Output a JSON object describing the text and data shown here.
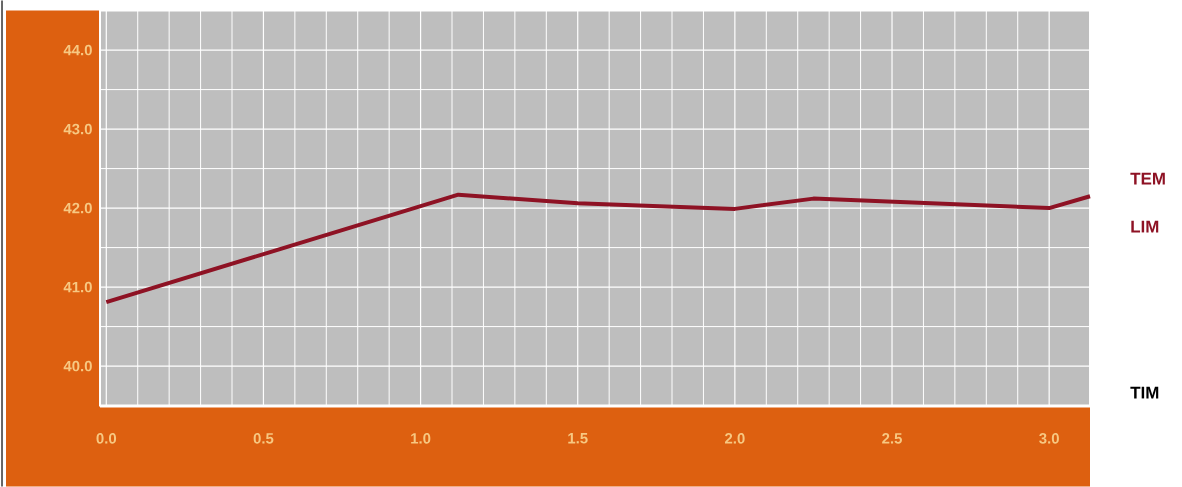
{
  "chart_data": {
    "type": "line",
    "x": [
      0.0,
      1.12,
      1.5,
      2.0,
      2.25,
      3.0,
      3.13
    ],
    "series": [
      {
        "color": "#8e1224",
        "values": [
          40.81,
          42.17,
          42.06,
          41.99,
          42.12,
          42.0,
          42.15
        ]
      }
    ],
    "xlim": [
      -0.02,
      3.13
    ],
    "ylim": [
      39.5,
      44.5
    ],
    "xticks": [
      {
        "value": 0,
        "label": "0.0"
      },
      {
        "value": 0.5,
        "label": "0.5"
      },
      {
        "value": 1,
        "label": "1.0"
      },
      {
        "value": 1.5,
        "label": "1.5"
      },
      {
        "value": 2,
        "label": "2.0"
      },
      {
        "value": 2.5,
        "label": "2.5"
      },
      {
        "value": 3,
        "label": "3.0"
      }
    ],
    "yticks": [
      {
        "value": 40,
        "label": "40.0"
      },
      {
        "value": 41,
        "label": "41.0"
      },
      {
        "value": 42,
        "label": "42.0"
      },
      {
        "value": 43,
        "label": "43.0"
      },
      {
        "value": 44,
        "label": "44.0"
      }
    ],
    "grid": true,
    "marker": "none",
    "line_style": "solid",
    "annotations": [
      "TEM",
      "LIM",
      "TIM"
    ]
  }
}
